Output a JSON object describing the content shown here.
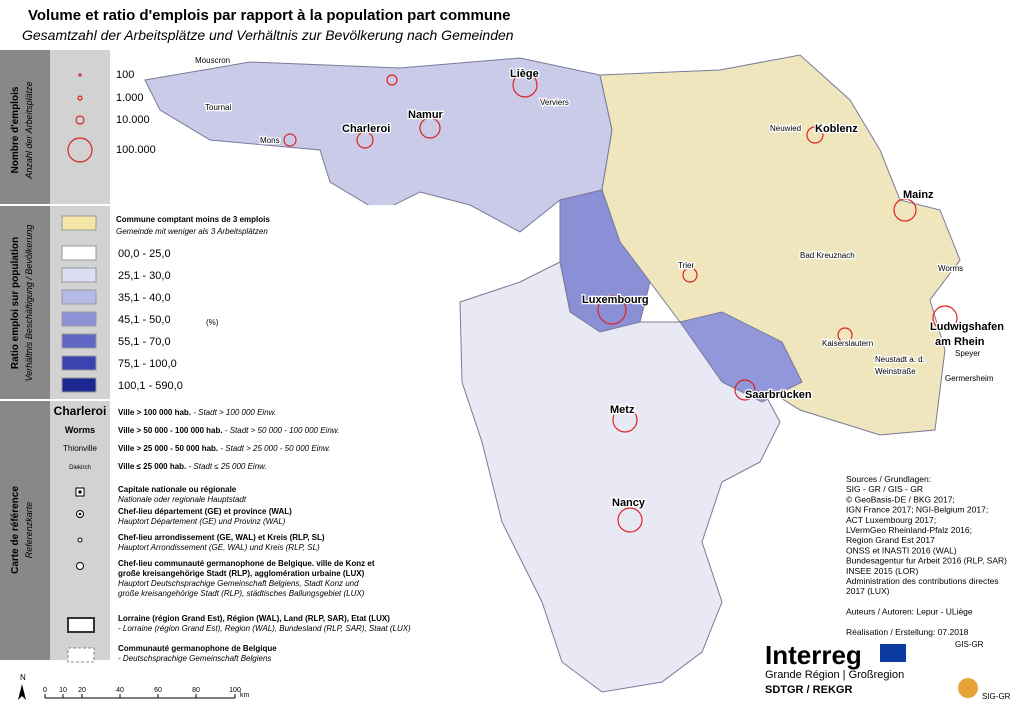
{
  "title": "Volume et ratio d'emplois par rapport à la population part commune",
  "subtitle": "Gesamtzahl der Arbeitsplätze und Verhältnis zur Bevölkerung nach Gemeinden",
  "sidebar": {
    "jobs": [
      "Nombre d'emplois",
      "Anzahl der Arbeitsplätze"
    ],
    "ratio": [
      "Ratio emploi sur population",
      "Verhältnis Beschäftigung / Bevölkerung"
    ],
    "reference": [
      "Carte de référence",
      "Referenzkarte"
    ]
  },
  "legend": {
    "circles": [
      "100",
      "1.000",
      "10.000",
      "100.000"
    ],
    "few_jobs": [
      "Commune comptant moins de 3 emplois",
      "Gemeinde mit weniger als 3 Arbeitsplätzen"
    ],
    "unit": "(%)",
    "classes": [
      {
        "label": "00,0 - 25,0",
        "color": "#ffffff"
      },
      {
        "label": "25,1 - 30,0",
        "color": "#dcdff2"
      },
      {
        "label": "35,1 - 40,0",
        "color": "#b5b9e6"
      },
      {
        "label": "45,1 - 50,0",
        "color": "#8d92d6"
      },
      {
        "label": "55,1 - 70,0",
        "color": "#5f66c4"
      },
      {
        "label": "75,1 - 100,0",
        "color": "#3a44b0"
      },
      {
        "label": "100,1 - 590,0",
        "color": "#1a2890"
      }
    ],
    "cities": [
      {
        "sample": "Charleroi",
        "fr": "Ville > 100 000 hab.",
        "de": " - Stadt > 100 000 Einw."
      },
      {
        "sample": "Worms",
        "fr": "Ville > 50 000 - 100 000 hab.",
        "de": " - Stadt > 50 000 - 100 000 Einw."
      },
      {
        "sample": "Thionville",
        "fr": "Ville > 25 000 - 50 000  hab.",
        "de": " - Stadt > 25 000 - 50 000 Einw."
      },
      {
        "sample": "Diekirch",
        "fr": "Ville ≤ 25 000  hab.",
        "de": " - Stadt ≤ 25 000 Einw."
      }
    ],
    "symbols": [
      [
        "Capitale nationale ou régionale",
        "Nationale oder regionale Hauptstadt"
      ],
      [
        "Chef-lieu département (GE) et province (WAL)",
        "Hauptort Département (GE) und Provinz (WAL)"
      ],
      [
        "Chef-lieu arrondissement (GE, WAL) et Kreis (RLP, SL)",
        "Hauptort Arrondissement (GE, WAL) und Kreis (RLP, SL)"
      ],
      [
        "Chef-lieu communauté germanophone de Belgique. ville de Konz et",
        "große kreisangehörige Stadt (RLP), agglomération urbaine (LUX)",
        "Hauptort Deutschsprachige Gemeinschaft Belgiens, Stadt Konz und",
        "große kreisangehörige Stadt (RLP), städtisches Ballungsgebiet (LUX)"
      ]
    ],
    "borders": [
      [
        "Lorraine (région Grand Est), Région (WAL), Land (RLP, SAR), Etat (LUX)",
        "- Lorraine (région Grand Est), Region (WAL), Bundesland (RLP, SAR), Staat (LUX)"
      ],
      [
        "Communauté germanophone de Belgique",
        "- Deutschsprachige Gemeinschaft Belgiens"
      ]
    ]
  },
  "places": [
    "Mouscron",
    "Tournai",
    "Mons",
    "Charleroi",
    "Namur",
    "Liège",
    "Verviers",
    "Neuwied",
    "Koblenz",
    "Mainz",
    "Bad Kreuznach",
    "Worms",
    "Trier",
    "Luxembourg",
    "Ludwigshafen",
    "am Rhein",
    "Kaiserslautern",
    "Neustadt a. d.",
    "Weinstraße",
    "Speyer",
    "Germersheim",
    "Saarbrücken",
    "Metz",
    "Nancy"
  ],
  "sources": [
    "Sources / Grundlagen:",
    "SIG - GR / GIS - GR",
    "© GeoBasis-DE / BKG 2017;",
    "IGN France 2017; NGI-Belgium 2017;",
    "ACT Luxembourg 2017;",
    "LVermGeo Rheinland-Pfalz 2016;",
    "Region Grand Est 2017",
    "ONSS et INASTI 2016 (WAL)",
    "Bundesagentur fur Arbeit 2016 (RLP, SAR)",
    "INSEE 2015 (LOR)",
    "Administration des contributions directes",
    "2017 (LUX)",
    "",
    "Auteurs / Autoren: Lepur - ULiège",
    "",
    "Réalisation / Erstellung: 07.2018"
  ],
  "scale": {
    "ticks": [
      "0",
      "10",
      "20",
      "40",
      "60",
      "80",
      "100"
    ],
    "unit": "km",
    "north": "N"
  },
  "logos": {
    "interreg": "Interreg",
    "region": "Grande Région | Großregion",
    "sdtgr": "SDTGR / REKGR",
    "gis": "GIS-GR",
    "sig": "SIG-GR"
  }
}
